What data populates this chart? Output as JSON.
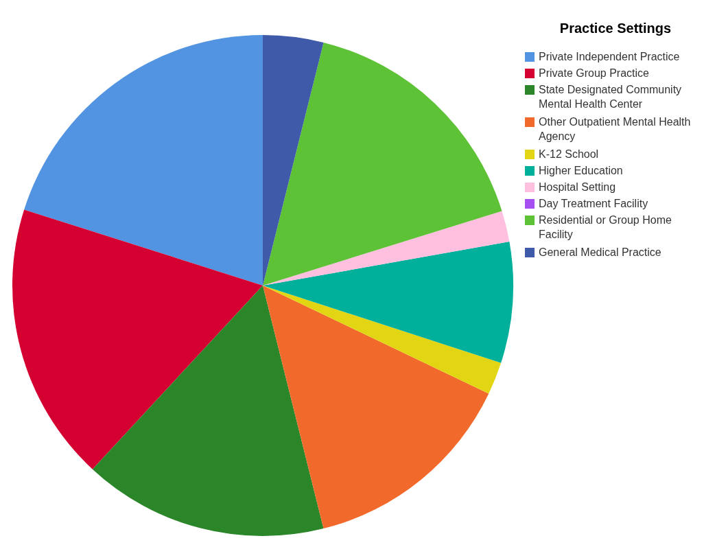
{
  "chart_data": {
    "type": "pie",
    "legend_title": "Practice Settings",
    "legend": "top right",
    "categories": [
      "Private Independent Practice",
      "Private Group Practice",
      "State Designated Community Mental Health Center",
      "Other Outpatient Mental Health Agency",
      "K-12 School",
      "Higher Education",
      "Hospital Setting",
      "Day Treatment Facility",
      "Residential or Group Home Facility",
      "General Medical Practice"
    ],
    "values": [
      20.1,
      18.0,
      15.8,
      14.0,
      2.1,
      7.8,
      2.0,
      0,
      16.3,
      3.9
    ],
    "colors": [
      "#5294e2",
      "#d50032",
      "#2a8629",
      "#f26a2b",
      "#e2d614",
      "#00b09b",
      "#ffc0e0",
      "#a64ff0",
      "#5ec237",
      "#3f5aa8"
    ]
  }
}
